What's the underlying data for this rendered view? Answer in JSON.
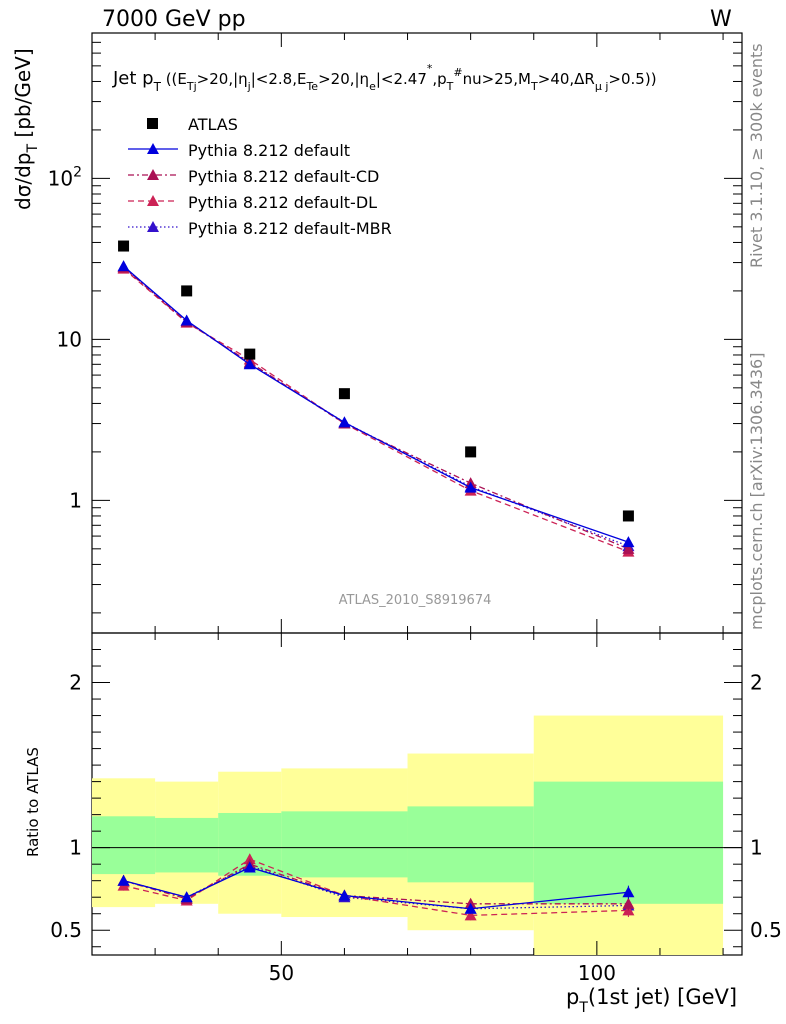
{
  "header": {
    "energy": "7000 GeV pp",
    "process": "W"
  },
  "side": {
    "rivet": "Rivet 3.1.10, ≥ 300k events",
    "mcplots": "mcplots.cern.ch [arXiv:1306.3436]"
  },
  "watermark": "ATLAS_2010_S8919674",
  "labels": {
    "ylabel": "dσ/dp_T [pb/GeV]",
    "xlabel": "p_T(1st jet) [GeV]",
    "ratio_ylabel": "Ratio to ATLAS",
    "title": "Jet p_T ((E_Tj>20,|η_j|<2.8,E_Te>20,|η_e|<2.47*,p_T#nu>25,M_T>40,ΔR_μj>0.5))"
  },
  "legend": [
    "ATLAS",
    "Pythia 8.212 default",
    "Pythia 8.212 default-CD",
    "Pythia 8.212 default-DL",
    "Pythia 8.212 default-MBR"
  ],
  "chart_data": {
    "type": "scatter",
    "x": [
      25,
      35,
      45,
      60,
      80,
      105
    ],
    "bin_edges": [
      20,
      30,
      40,
      50,
      70,
      90,
      120
    ],
    "xlim": [
      20,
      123
    ],
    "main_ylim": [
      0.15,
      800
    ],
    "main_yscale": "log",
    "main_yticks": [
      "1",
      "10",
      "10^2"
    ],
    "ratio_ylim": [
      0.35,
      2.3
    ],
    "ratio_yticks": [
      "0.5",
      "1",
      "2"
    ],
    "xticks": [
      "50",
      "100"
    ],
    "series": [
      {
        "name": "ATLAS",
        "style": "square",
        "color": "#000000",
        "values": [
          38,
          20,
          8.1,
          4.6,
          2.0,
          0.8
        ]
      },
      {
        "name": "Pythia 8.212 default",
        "style": "solid",
        "color": "#0000dd",
        "values": [
          28.5,
          13.1,
          7.0,
          3.05,
          1.2,
          0.55
        ],
        "ratio": [
          0.8,
          0.7,
          0.88,
          0.71,
          0.63,
          0.73
        ]
      },
      {
        "name": "Pythia 8.212 default-CD",
        "style": "dashdot",
        "color": "#aa1155",
        "values": [
          28.0,
          12.8,
          7.2,
          3.0,
          1.28,
          0.5
        ],
        "ratio": [
          0.8,
          0.69,
          0.9,
          0.71,
          0.66,
          0.66
        ]
      },
      {
        "name": "Pythia 8.212 default-DL",
        "style": "dashed",
        "color": "#cc2255",
        "values": [
          27.5,
          12.7,
          7.5,
          3.0,
          1.15,
          0.48
        ],
        "ratio": [
          0.77,
          0.68,
          0.93,
          0.71,
          0.59,
          0.62
        ]
      },
      {
        "name": "Pythia 8.212 default-MBR",
        "style": "dotted",
        "color": "#3311cc",
        "values": [
          28.2,
          13.0,
          7.1,
          3.05,
          1.22,
          0.52
        ],
        "ratio": [
          0.8,
          0.7,
          0.89,
          0.7,
          0.63,
          0.65
        ]
      }
    ],
    "ratio_errors": [
      0.03,
      0.02,
      0.03,
      0.02,
      0.03,
      0.04
    ],
    "bands": {
      "green": {
        "lo": [
          0.84,
          0.85,
          0.83,
          0.82,
          0.79,
          0.66
        ],
        "hi": [
          1.19,
          1.18,
          1.21,
          1.22,
          1.25,
          1.4
        ]
      },
      "yellow": {
        "lo": [
          0.64,
          0.66,
          0.6,
          0.58,
          0.5,
          0.0
        ],
        "hi": [
          1.42,
          1.4,
          1.46,
          1.48,
          1.57,
          1.8
        ]
      }
    }
  }
}
